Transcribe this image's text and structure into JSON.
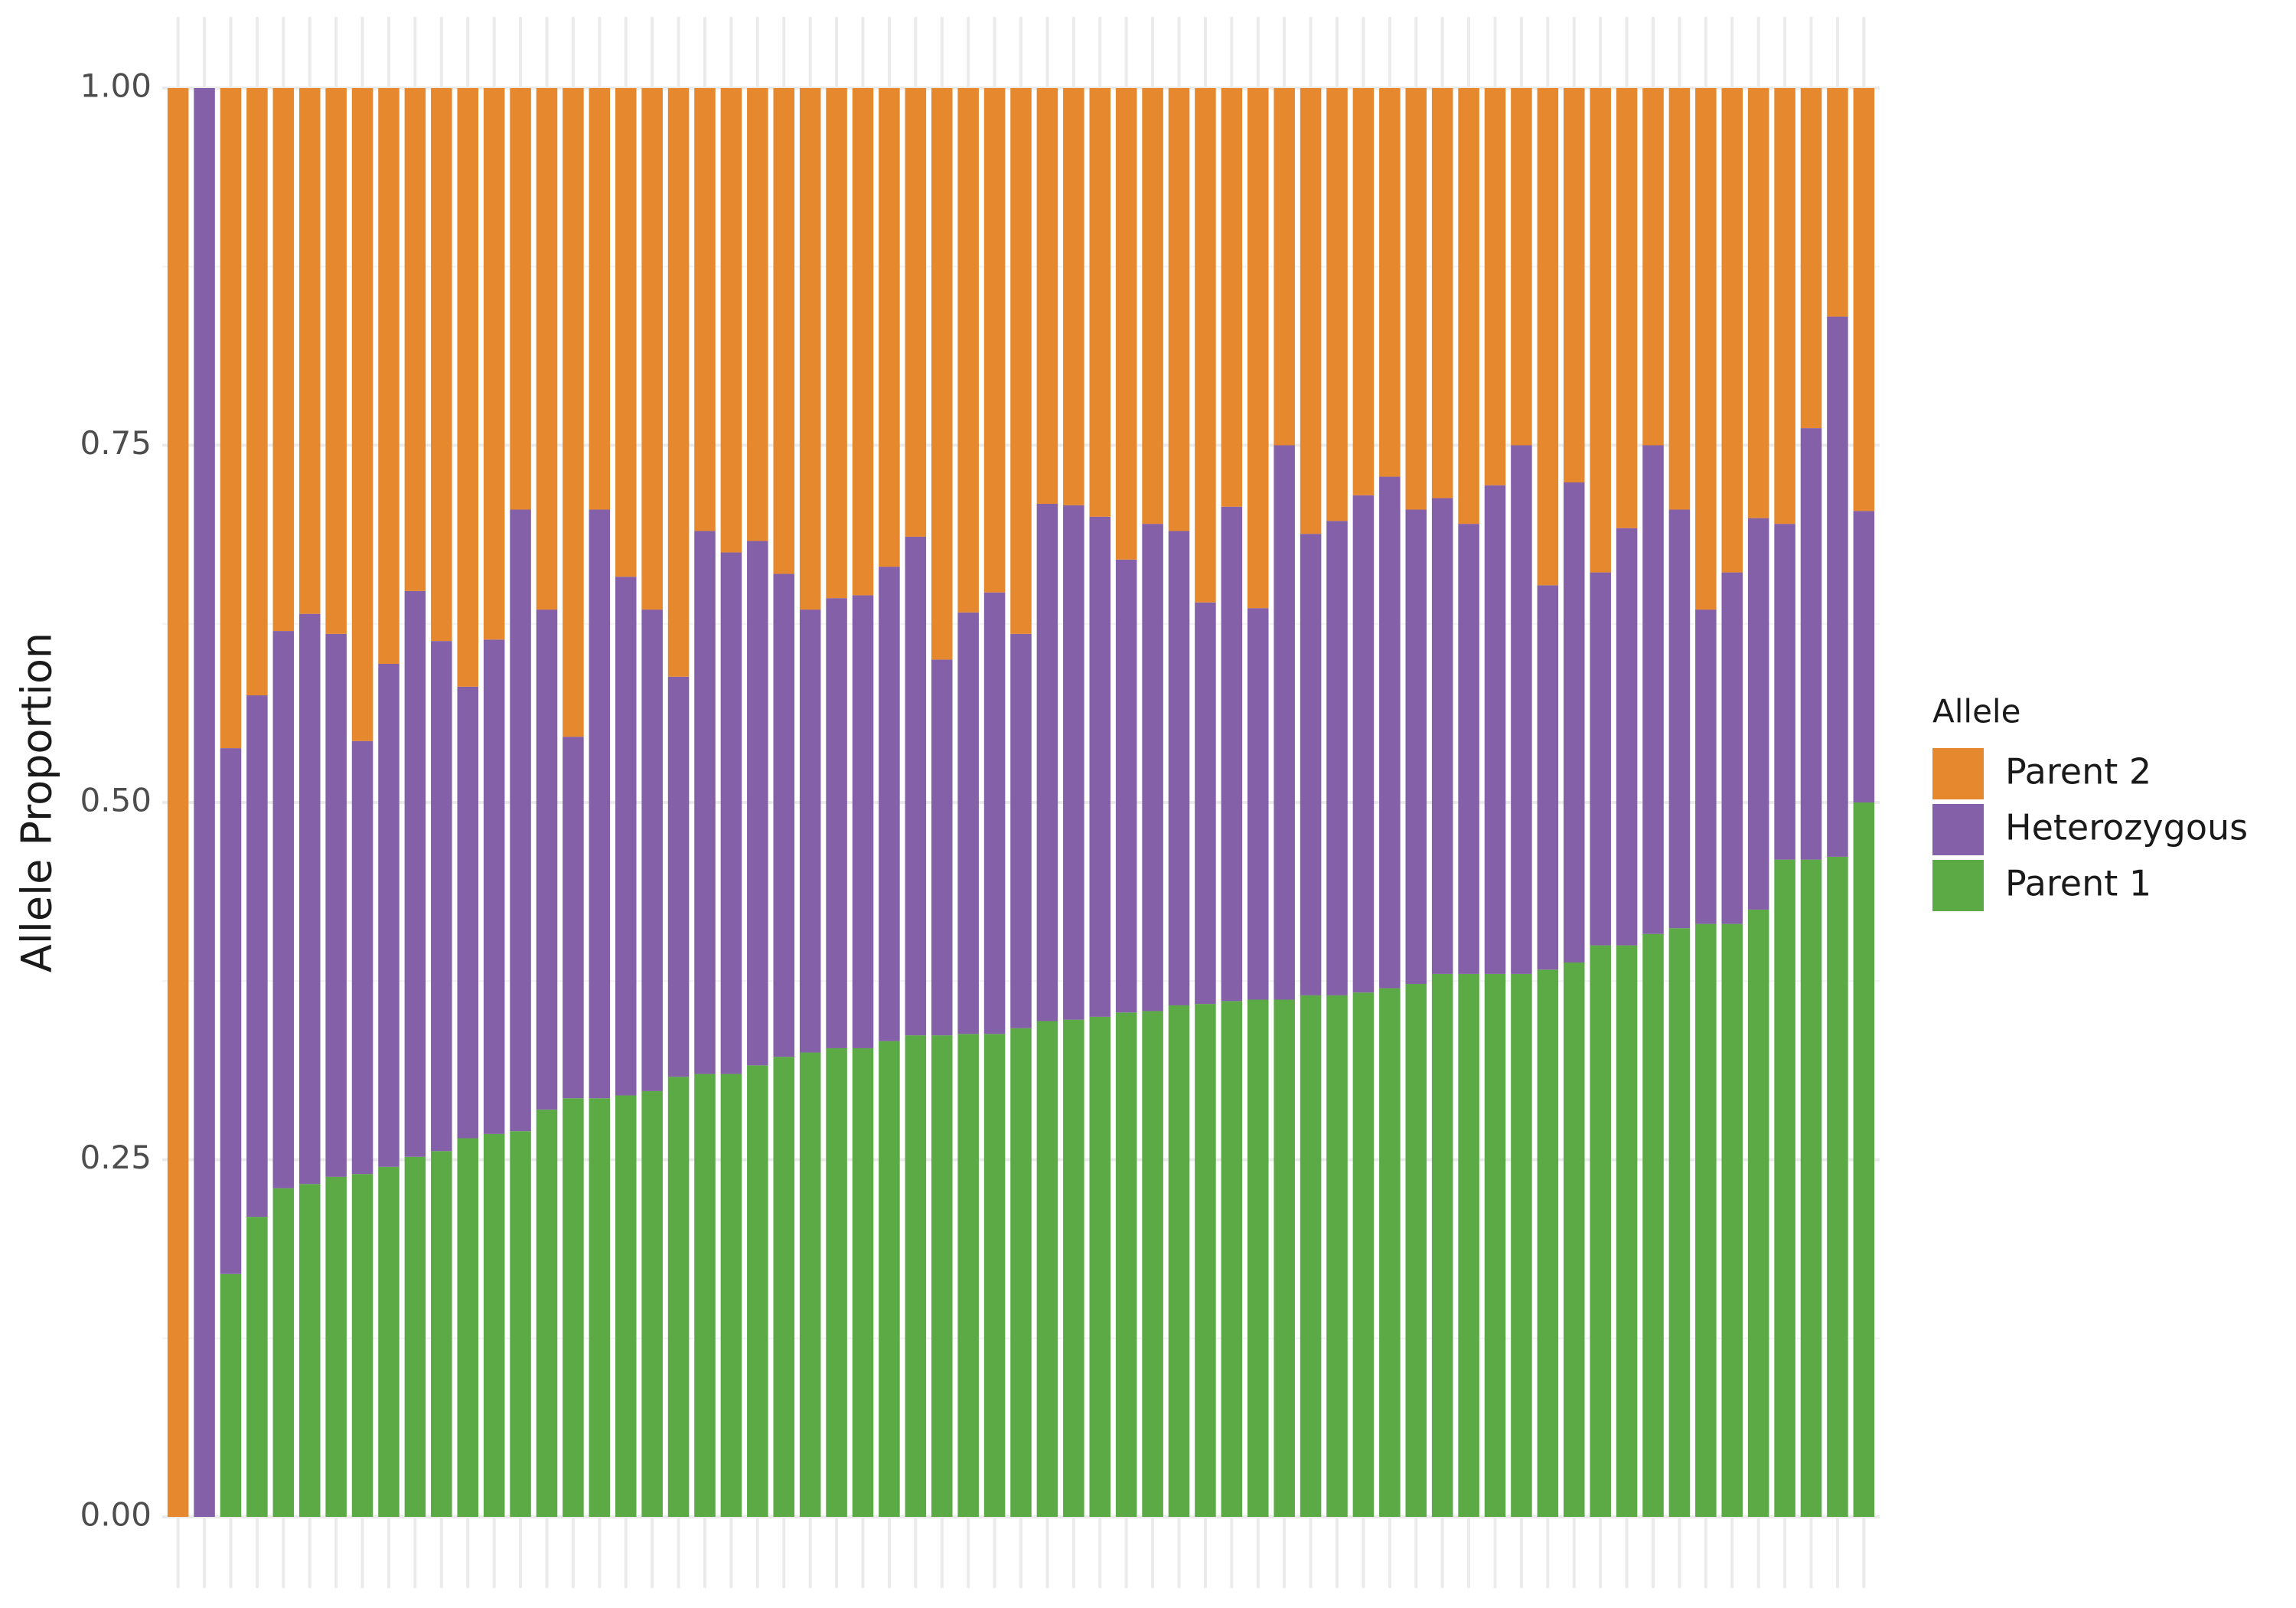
{
  "chart_data": {
    "type": "stacked_bar",
    "y_label": "Allele Proportion",
    "legend_title": "Allele",
    "legend_position": "right",
    "grid": true,
    "categories": [
      null,
      null,
      null,
      null,
      null,
      null,
      null,
      null,
      null,
      null,
      null,
      null,
      null,
      null,
      null,
      null,
      null,
      null,
      null,
      null,
      null,
      null,
      null,
      null,
      null,
      null,
      null,
      null,
      null,
      null,
      null,
      null,
      null,
      null,
      null,
      null,
      null,
      null,
      null,
      null,
      null,
      null,
      null,
      null,
      null,
      null,
      null,
      null,
      null,
      null,
      null,
      null,
      null,
      null,
      null,
      null,
      null,
      null,
      null,
      null,
      null,
      null,
      null,
      null,
      null
    ],
    "series": [
      {
        "name": "Parent 2",
        "color": "#E6882E",
        "values": [
          1,
          0,
          0.462,
          0.425,
          0.38,
          0.368,
          0.382,
          0.457,
          0.403,
          0.352,
          0.387,
          0.419,
          0.386,
          0.295,
          0.365,
          0.454,
          0.295,
          0.342,
          0.365,
          0.412,
          0.31,
          0.325,
          0.317,
          0.34,
          0.365,
          0.357,
          0.355,
          0.335,
          0.314,
          0.4,
          0.367,
          0.353,
          0.382,
          0.291,
          0.292,
          0.3,
          0.33,
          0.305,
          0.31,
          0.36,
          0.293,
          0.364,
          0.25,
          0.312,
          0.303,
          0.285,
          0.272,
          0.295,
          0.287,
          0.305,
          0.278,
          0.25,
          0.348,
          0.276,
          0.339,
          0.308,
          0.25,
          0.295,
          0.365,
          0.339,
          0.301,
          0.305,
          0.238,
          0.16,
          0.296
        ]
      },
      {
        "name": "Heterozygous",
        "color": "#8460A8",
        "values": [
          0,
          1,
          0.368,
          0.365,
          0.39,
          0.399,
          0.38,
          0.303,
          0.352,
          0.396,
          0.357,
          0.316,
          0.346,
          0.435,
          0.35,
          0.253,
          0.412,
          0.363,
          0.337,
          0.28,
          0.38,
          0.365,
          0.367,
          0.338,
          0.31,
          0.315,
          0.317,
          0.332,
          0.349,
          0.263,
          0.295,
          0.309,
          0.276,
          0.362,
          0.36,
          0.35,
          0.317,
          0.341,
          0.332,
          0.281,
          0.346,
          0.274,
          0.388,
          0.323,
          0.332,
          0.348,
          0.358,
          0.332,
          0.333,
          0.315,
          0.342,
          0.37,
          0.269,
          0.336,
          0.261,
          0.292,
          0.342,
          0.293,
          0.22,
          0.246,
          0.274,
          0.235,
          0.302,
          0.378,
          0.204
        ]
      },
      {
        "name": "Parent 1",
        "color": "#5BAA46",
        "values": [
          0,
          0,
          0.17,
          0.21,
          0.23,
          0.233,
          0.238,
          0.24,
          0.245,
          0.252,
          0.256,
          0.265,
          0.268,
          0.27,
          0.285,
          0.293,
          0.293,
          0.295,
          0.298,
          0.308,
          0.31,
          0.31,
          0.316,
          0.322,
          0.325,
          0.328,
          0.328,
          0.333,
          0.337,
          0.337,
          0.338,
          0.338,
          0.342,
          0.347,
          0.348,
          0.35,
          0.353,
          0.354,
          0.358,
          0.359,
          0.361,
          0.362,
          0.362,
          0.365,
          0.365,
          0.367,
          0.37,
          0.373,
          0.38,
          0.38,
          0.38,
          0.38,
          0.383,
          0.388,
          0.4,
          0.4,
          0.408,
          0.412,
          0.415,
          0.415,
          0.425,
          0.46,
          0.46,
          0.462,
          0.5
        ]
      }
    ],
    "ylim": [
      0,
      1
    ],
    "yticks": [
      {
        "value": 0,
        "label": "0.00"
      },
      {
        "value": 0.25,
        "label": "0.25"
      },
      {
        "value": 0.5,
        "label": "0.50"
      },
      {
        "value": 0.75,
        "label": "0.75"
      },
      {
        "value": 1,
        "label": "1.00"
      }
    ]
  }
}
